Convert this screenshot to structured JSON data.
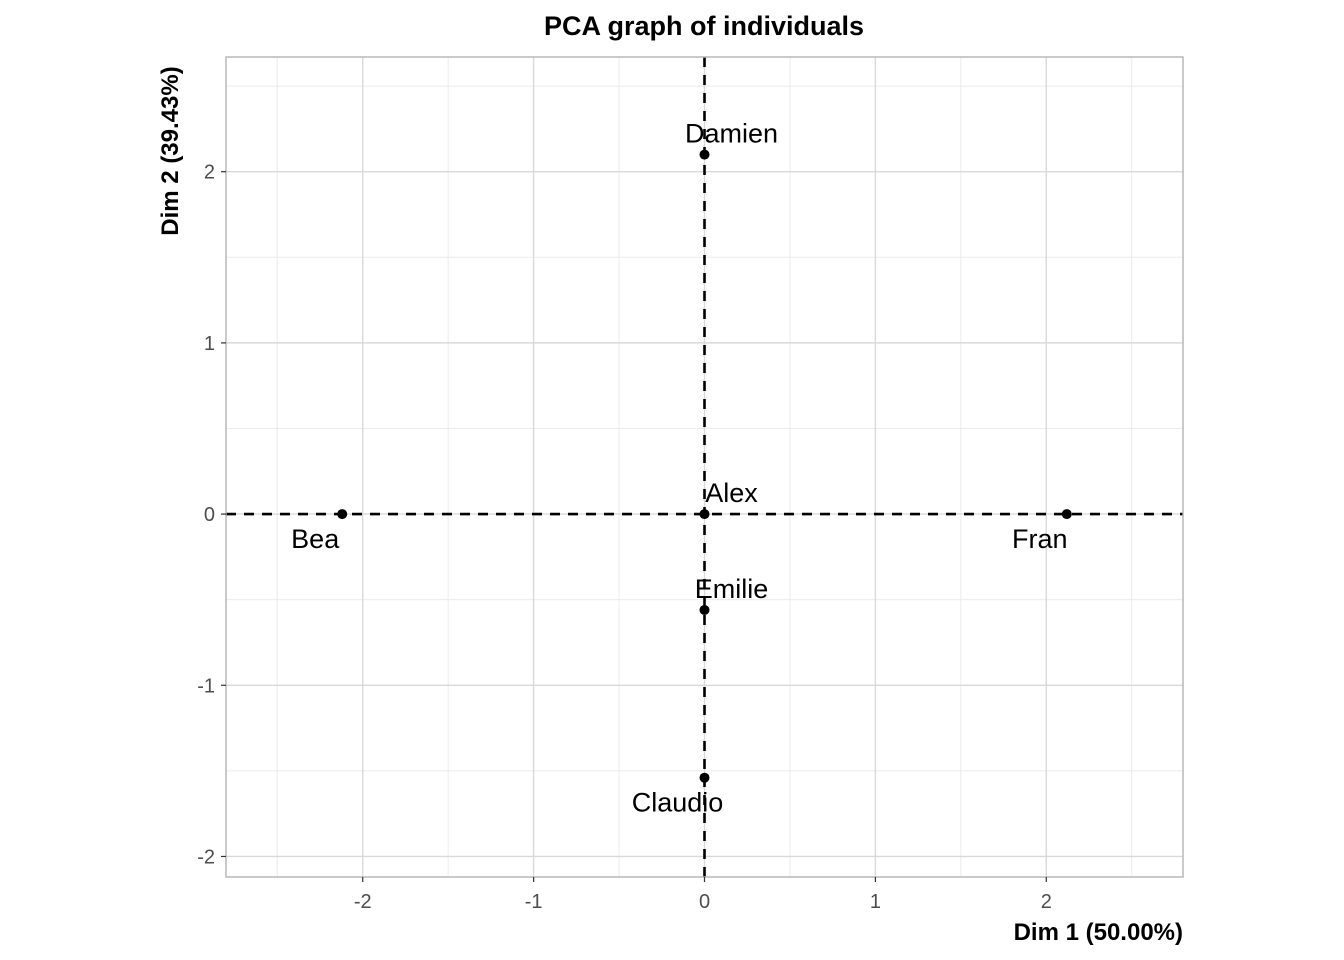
{
  "chart_data": {
    "type": "scatter",
    "title": "PCA graph of individuals",
    "xlabel": "Dim 1 (50.00%)",
    "ylabel": "Dim 2 (39.43%)",
    "xlim": [
      -2.8,
      2.8
    ],
    "ylim": [
      -2.12,
      2.67
    ],
    "xticks": [
      -2,
      -1,
      0,
      1,
      2
    ],
    "yticks": [
      -2,
      -1,
      0,
      1,
      2
    ],
    "grid": true,
    "reference_lines": {
      "x": 0,
      "y": 0,
      "style": "dashed"
    },
    "points": [
      {
        "label": "Damien",
        "x": 0.0,
        "y": 2.1,
        "label_position": "above-right"
      },
      {
        "label": "Alex",
        "x": 0.0,
        "y": 0.0,
        "label_position": "above-right"
      },
      {
        "label": "Bea",
        "x": -2.12,
        "y": 0.0,
        "label_position": "below-left"
      },
      {
        "label": "Fran",
        "x": 2.12,
        "y": 0.0,
        "label_position": "below-left"
      },
      {
        "label": "Emilie",
        "x": 0.0,
        "y": -0.56,
        "label_position": "above-right"
      },
      {
        "label": "Claudio",
        "x": 0.0,
        "y": -1.54,
        "label_position": "below-left"
      }
    ]
  },
  "colors": {
    "background": "#ffffff",
    "grid_major": "#d9d9d9",
    "grid_minor": "#ebebeb",
    "panel_border": "#b3b3b3",
    "points": "#000000",
    "tick_text": "#4d4d4d"
  }
}
